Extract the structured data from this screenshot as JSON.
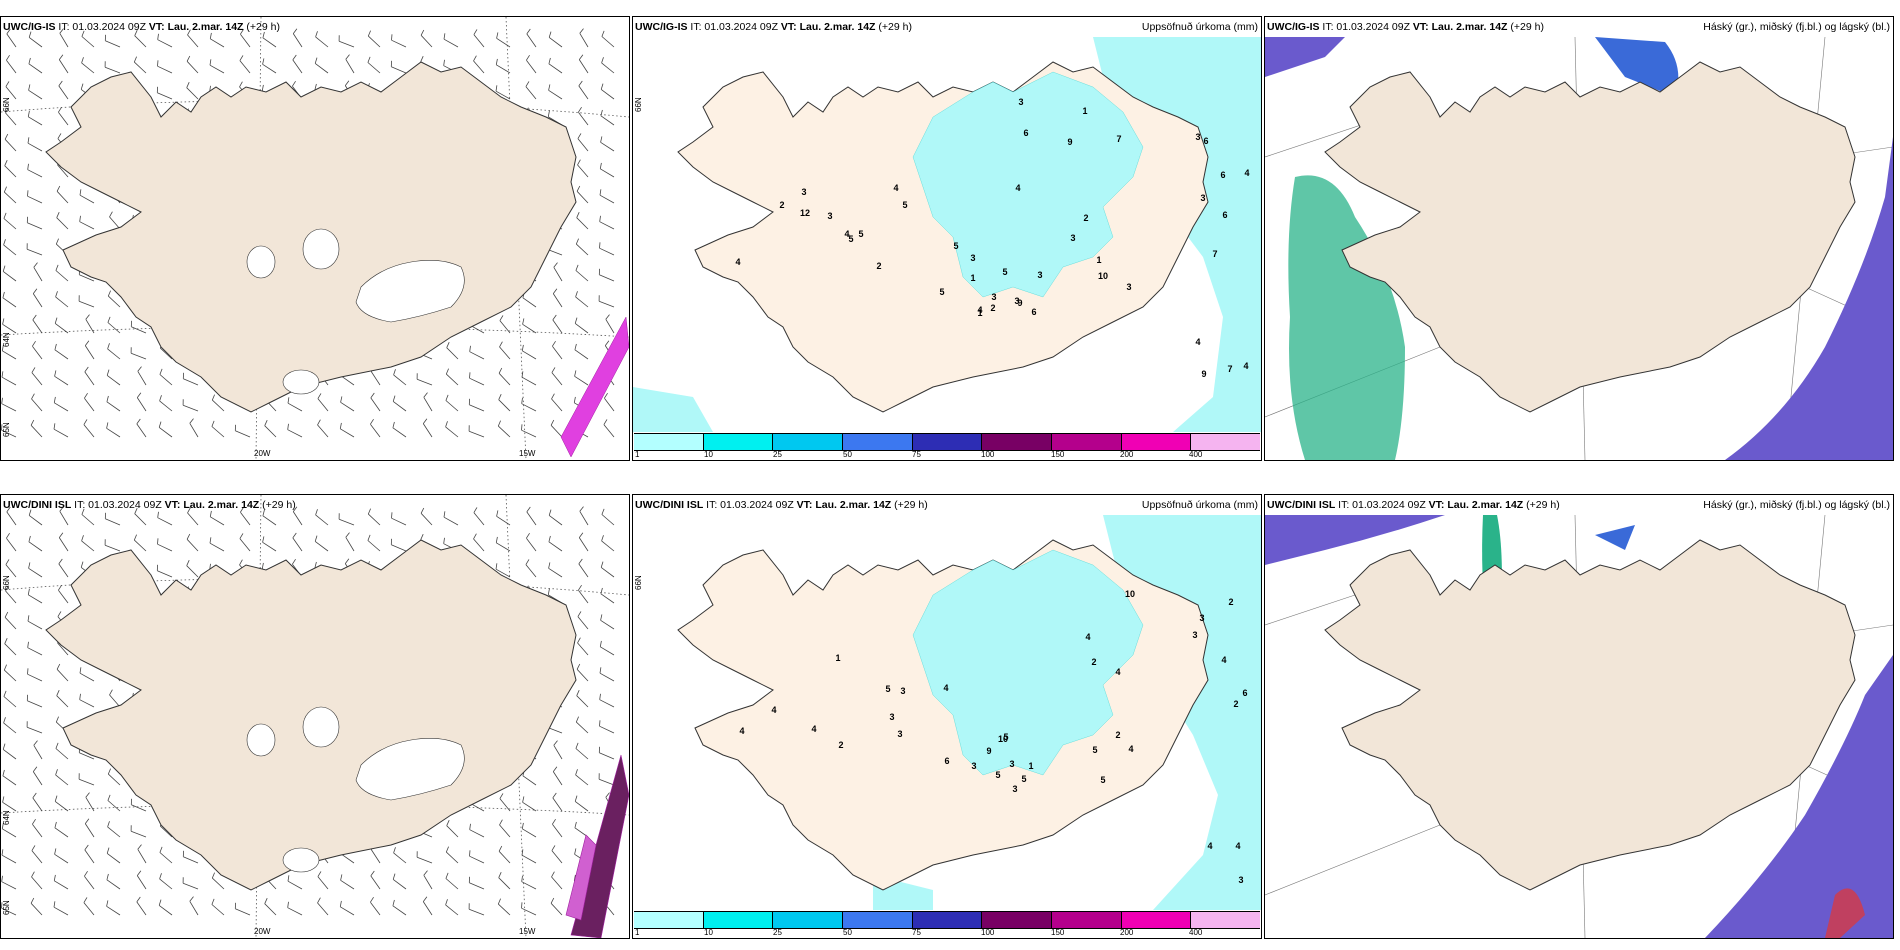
{
  "panels": {
    "p1": {
      "model": "UWC/IG-IS",
      "it": "IT: 01.03.2024 09Z",
      "vt_label": "VT:",
      "vt": "Lau. 2.mar. 14Z",
      "lead": "(+29 h)"
    },
    "p2": {
      "model": "UWC/IG-IS",
      "it": "IT: 01.03.2024 09Z",
      "vt_label": "VT:",
      "vt": "Lau. 2.mar. 14Z",
      "lead": "(+29 h)",
      "right_title": "Uppsöfnuð úrkoma (mm)"
    },
    "p3": {
      "model": "UWC/IG-IS",
      "it": "IT: 01.03.2024 09Z",
      "vt_label": "VT:",
      "vt": "Lau. 2.mar. 14Z",
      "lead": "(+29 h)",
      "right_title": "Háský (gr.), miðský (fj.bl.) og lágský (bl.)"
    },
    "p4": {
      "model": "UWC/DINI ISL",
      "it": "IT: 01.03.2024 09Z",
      "vt_label": "VT:",
      "vt": "Lau. 2.mar. 14Z",
      "lead": "(+29 h)"
    },
    "p5": {
      "model": "UWC/DINI ISL",
      "it": "IT: 01.03.2024 09Z",
      "vt_label": "VT:",
      "vt": "Lau. 2.mar. 14Z",
      "lead": "(+29 h)",
      "right_title": "Uppsöfnuð úrkoma (mm)"
    },
    "p6": {
      "model": "UWC/DINI ISL",
      "it": "IT: 01.03.2024 09Z",
      "vt_label": "VT:",
      "vt": "Lau. 2.mar. 14Z",
      "lead": "(+29 h)",
      "right_title": "Háský (gr.), miðský (fj.bl.) og lágský (bl.)"
    }
  },
  "axis_labels": {
    "lat66": "66N",
    "lat64": "64N",
    "lat65": "65N",
    "lon20": "20W",
    "lon15": "15W"
  },
  "precip_legend": {
    "ticks": [
      "1",
      "10",
      "25",
      "50",
      "75",
      "100",
      "150",
      "200",
      "400"
    ],
    "colors": [
      "#b3ffff",
      "#00f0f0",
      "#00c8f0",
      "#3c78f0",
      "#2d2db4",
      "#780064",
      "#b4008c",
      "#f000b4",
      "#f5b4f0"
    ]
  },
  "colors": {
    "land": "#f2e6d8",
    "land_precip": "#fdf1e4",
    "precip_light": "#b0f8f8",
    "cloud_high": "#2ab38a",
    "cloud_mid": "#3a6ad8",
    "cloud_low": "#6a5acd",
    "outline": "#333333"
  },
  "precip_values_top": [
    "3",
    "1",
    "4",
    "7",
    "9",
    "4",
    "3",
    "6",
    "5",
    "5",
    "4",
    "9",
    "6",
    "3",
    "5",
    "3",
    "3",
    "10",
    "4",
    "4",
    "4",
    "3",
    "12",
    "6",
    "1",
    "3",
    "2",
    "4",
    "2",
    "6",
    "2",
    "3",
    "3",
    "2",
    "5",
    "6",
    "5",
    "9",
    "3",
    "4",
    "7",
    "1",
    "5",
    "7",
    "3",
    "1"
  ],
  "precip_values_bottom": [
    "2",
    "5",
    "3",
    "4",
    "6",
    "5",
    "5",
    "4",
    "10",
    "9",
    "3",
    "3",
    "4",
    "3",
    "4",
    "3",
    "4",
    "10",
    "4",
    "6",
    "4",
    "3",
    "2",
    "2",
    "3",
    "5",
    "1",
    "2",
    "4",
    "5",
    "4",
    "4",
    "5",
    "1",
    "3",
    "3",
    "2"
  ]
}
